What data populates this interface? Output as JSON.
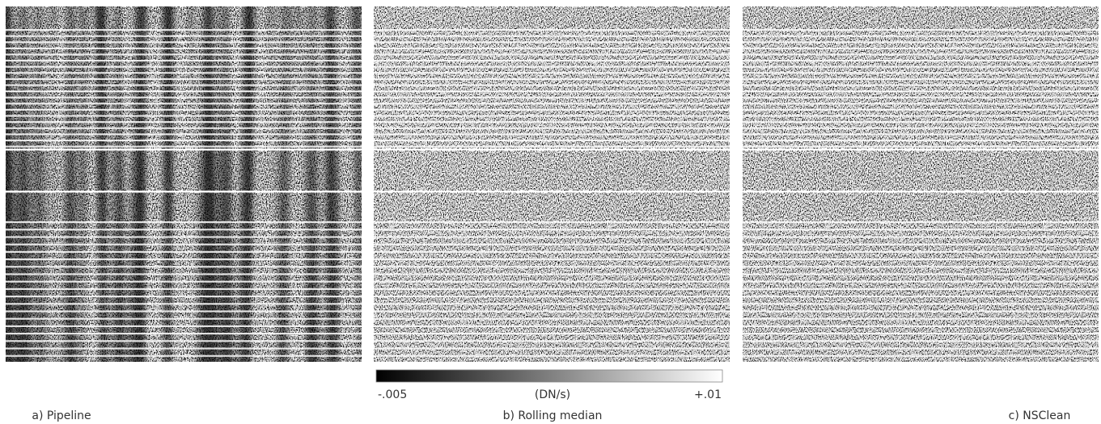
{
  "panels": [
    {
      "caption": "a) Pipeline"
    },
    {
      "caption": "b) Rolling median"
    },
    {
      "caption": "c) NSClean"
    }
  ],
  "colorbar": {
    "min_label": "-.005",
    "unit": "(DN/s)",
    "max_label": "+.01"
  }
}
